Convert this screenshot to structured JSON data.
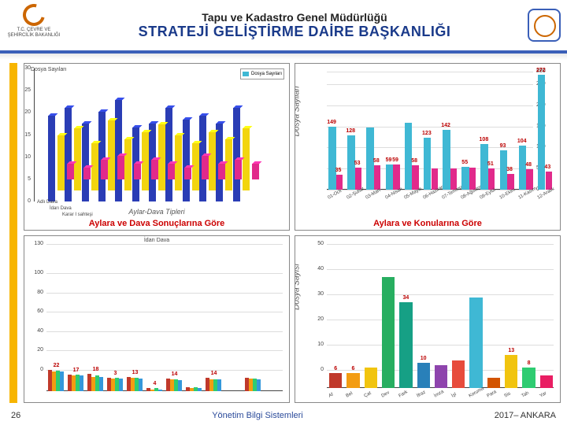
{
  "header": {
    "line1": "Tapu ve Kadastro Genel Müdürlüğü",
    "line2": "STRATEJİ GELİŞTİRME DAİRE BAŞKANLIĞI",
    "logo_left_text": "T.C.\nÇEVRE VE ŞEHİRCİLİK\nBAKANLIĞI"
  },
  "footer": {
    "page": "26",
    "center": "Yönetim Bilgi Sistemleri",
    "right": "2017– ANKARA"
  },
  "colors": {
    "header_rule": "#3a5fb8",
    "yellow_bar": "#f7b500",
    "title_red": "#cc0000"
  },
  "tl": {
    "small_title": "Dosya Sayıları",
    "title": "Aylara ve Dava Sonuçlarına Göre",
    "axis_title": "Aylar-Dava Tipleri",
    "y_ticks": [
      0,
      5,
      10,
      15,
      20,
      25,
      30
    ],
    "ylim": [
      0,
      30
    ],
    "legend": [
      "Dosya Sayıları"
    ],
    "legend_groups": [
      "Adlı Dava",
      "İdarı Dava",
      "Karar I sahteşi"
    ],
    "x_depth_labels": [
      "01 Ock",
      "02 Mart",
      "03 Mays",
      "04 Az",
      "05 Ek"
    ],
    "series": [
      {
        "color": "#2a3db5",
        "vals": [
          22,
          24,
          20,
          23,
          26,
          19,
          20,
          24,
          21,
          22,
          20,
          24
        ]
      },
      {
        "color": "#f2d50f",
        "vals": [
          14,
          16,
          12,
          18,
          13,
          15,
          17,
          14,
          12,
          15,
          13,
          16
        ]
      },
      {
        "color": "#e12a8b",
        "vals": [
          4,
          3,
          5,
          6,
          4,
          5,
          4,
          3,
          6,
          4,
          5,
          4
        ]
      }
    ]
  },
  "tr": {
    "title": "Aylara ve Konularına Göre",
    "y_label": "Dosya Sayilari",
    "y_ticks_right": [
      0,
      50,
      100,
      150,
      200,
      250,
      280
    ],
    "ylim": [
      0,
      280
    ],
    "categories": [
      "01-Ock",
      "02-Şubat",
      "03-Mart",
      "04-Nisan",
      "05-Mayıs",
      "06-Haziran",
      "07-Temmuz",
      "08-Ağustos",
      "09-Eylül",
      "10-Ekim",
      "11-Kasım",
      "12-Aralık"
    ],
    "cyan": {
      "color": "#3fb8d4",
      "vals": [
        149,
        128,
        148,
        59,
        158,
        123,
        142,
        55,
        108,
        93,
        104,
        272
      ],
      "labels": [
        "149",
        "128",
        "",
        "59",
        "",
        "123",
        "142",
        "55",
        "108",
        "93",
        "104",
        "272"
      ]
    },
    "magenta": {
      "color": "#e12a8b",
      "vals": [
        35,
        53,
        58,
        59,
        58,
        50,
        51,
        53,
        51,
        38,
        48,
        43
      ],
      "labels": [
        "35",
        "53",
        "58",
        "59",
        "58",
        "",
        "",
        "",
        "51",
        "38",
        "48",
        "43"
      ]
    },
    "extra_label": "35"
  },
  "bl": {
    "y_ticks": [
      0,
      20,
      40,
      60,
      80,
      100,
      130
    ],
    "ylim": [
      0,
      130
    ],
    "small_title": "İdarı Dava",
    "categories": [
      "01",
      "02",
      "03",
      "04",
      "05",
      "06",
      "07",
      "08",
      "09",
      "10",
      "11",
      "12"
    ],
    "groups": [
      {
        "color": "#c0392b",
        "vals": [
          22,
          17,
          18,
          14,
          15,
          3,
          13,
          4,
          14,
          0,
          14,
          0
        ]
      },
      {
        "color": "#f39c12",
        "vals": [
          20,
          16,
          15,
          13,
          14,
          2,
          12,
          3,
          12,
          0,
          13,
          0
        ]
      },
      {
        "color": "#2ecc71",
        "vals": [
          21,
          17,
          16,
          14,
          14,
          3,
          12,
          4,
          12,
          0,
          13,
          0
        ]
      },
      {
        "color": "#3498db",
        "vals": [
          20,
          16,
          15,
          13,
          13,
          2,
          11,
          3,
          12,
          0,
          12,
          0
        ]
      }
    ],
    "labels": [
      "22",
      "17",
      "18",
      "3",
      "13",
      "4",
      "14",
      "",
      "14"
    ]
  },
  "br": {
    "y_label": "Dosya Sayısı",
    "y_ticks": [
      0,
      10,
      20,
      30,
      40,
      50
    ],
    "ylim": [
      0,
      50
    ],
    "categories": [
      "Af",
      "Bel",
      "Çat",
      "Dev",
      "Fark",
      "İfraz",
      "İmza",
      "İşl",
      "Koruma",
      "Para",
      "Sis",
      "Tah",
      "Yar"
    ],
    "bars": [
      {
        "color": "#c0392b",
        "val": 6,
        "lbl": "6"
      },
      {
        "color": "#f39c12",
        "val": 6,
        "lbl": "6"
      },
      {
        "color": "#f1c40f",
        "val": 8,
        "lbl": ""
      },
      {
        "color": "#27ae60",
        "val": 44,
        "lbl": ""
      },
      {
        "color": "#16a085",
        "val": 34,
        "lbl": "34"
      },
      {
        "color": "#2980b9",
        "val": 10,
        "lbl": "10"
      },
      {
        "color": "#8e44ad",
        "val": 9,
        "lbl": ""
      },
      {
        "color": "#e74c3c",
        "val": 11,
        "lbl": ""
      },
      {
        "color": "#3fb8d4",
        "val": 36,
        "lbl": ""
      },
      {
        "color": "#d35400",
        "val": 4,
        "lbl": ""
      },
      {
        "color": "#f1c40f",
        "val": 13,
        "lbl": "13"
      },
      {
        "color": "#2ecc71",
        "val": 8,
        "lbl": "8"
      },
      {
        "color": "#e91e63",
        "val": 5,
        "lbl": ""
      }
    ]
  }
}
